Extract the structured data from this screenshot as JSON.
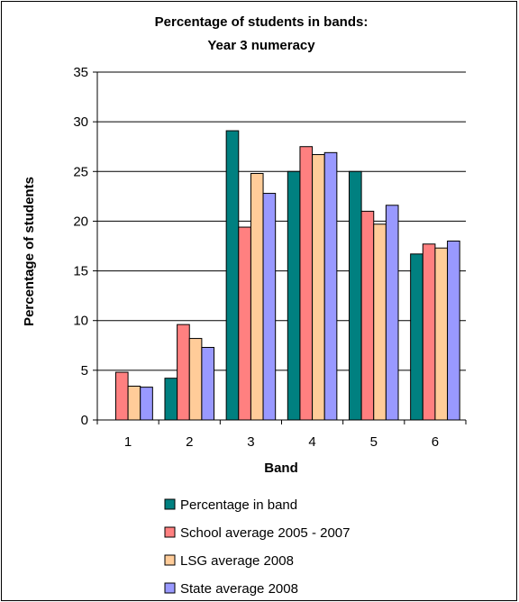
{
  "chart_data": {
    "type": "bar",
    "title": "Percentage of students in bands:",
    "subtitle": "Year 3 numeracy",
    "xlabel": "Band",
    "ylabel": "Percentage of students",
    "categories": [
      "1",
      "2",
      "3",
      "4",
      "5",
      "6"
    ],
    "ylim": [
      0,
      35
    ],
    "yticks": [
      "0",
      "5",
      "10",
      "15",
      "20",
      "25",
      "30",
      "35"
    ],
    "grid": true,
    "legend_position": "bottom",
    "series": [
      {
        "name": "Percentage in band",
        "color": "#008080",
        "values": [
          0,
          4.2,
          29.1,
          25.0,
          25.0,
          16.7
        ]
      },
      {
        "name": "School average 2005 - 2007",
        "color": "#ff8080",
        "values": [
          4.8,
          9.6,
          19.4,
          27.5,
          21.0,
          17.7
        ]
      },
      {
        "name": "LSG average 2008",
        "color": "#ffcc99",
        "values": [
          3.4,
          8.2,
          24.8,
          26.7,
          19.7,
          17.3
        ]
      },
      {
        "name": "State average 2008",
        "color": "#9999ff",
        "values": [
          3.3,
          7.3,
          22.8,
          26.9,
          21.6,
          18.0
        ]
      }
    ]
  }
}
